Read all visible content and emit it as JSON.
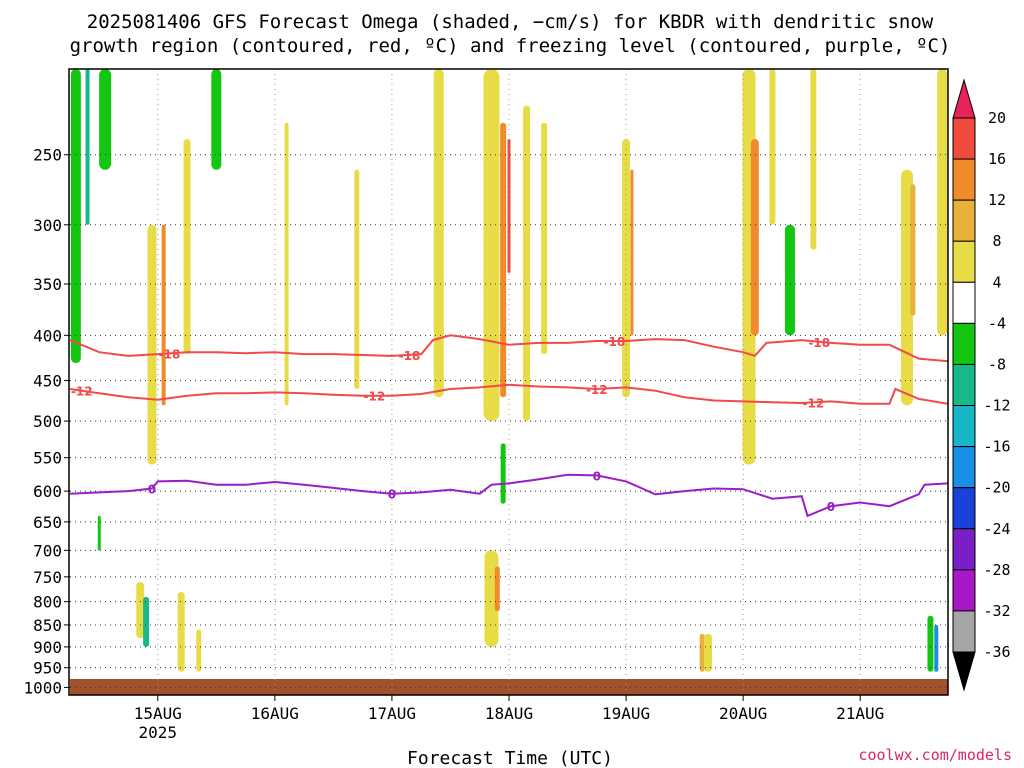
{
  "chart_data": {
    "type": "heatmap",
    "title_lines": [
      "2025081406 GFS Forecast Omega (shaded, −cm/s) for KBDR with dendritic snow",
      "growth region (contoured, red, ºC) and freezing level (contoured, purple, ºC)"
    ],
    "xlabel": "Forecast Time (UTC)",
    "credit": "coolwx.com/models",
    "x_ticks": [
      {
        "label": "15AUG",
        "sub": "2025",
        "day": 15.0
      },
      {
        "label": "16AUG",
        "sub": "",
        "day": 16.0
      },
      {
        "label": "17AUG",
        "sub": "",
        "day": 17.0
      },
      {
        "label": "18AUG",
        "sub": "",
        "day": 18.0
      },
      {
        "label": "19AUG",
        "sub": "",
        "day": 19.0
      },
      {
        "label": "20AUG",
        "sub": "",
        "day": 20.0
      },
      {
        "label": "21AUG",
        "sub": "",
        "day": 21.0
      }
    ],
    "x_range": [
      14.25,
      21.75
    ],
    "y_ticks": [
      250,
      300,
      350,
      400,
      450,
      500,
      550,
      600,
      650,
      700,
      750,
      800,
      850,
      900,
      950,
      1000
    ],
    "y_range_hpa": [
      200,
      1020
    ],
    "y_scale": "log-pressure",
    "colorbar": {
      "labels": [
        "20",
        "16",
        "12",
        "8",
        "4",
        "-4",
        "-8",
        "-12",
        "-16",
        "-20",
        "-24",
        "-28",
        "-32",
        "-36"
      ],
      "colors": [
        "#e6245a",
        "#f04a3c",
        "#f08a2a",
        "#e8b23a",
        "#e8dc46",
        "#ffffff",
        "#12c612",
        "#17b889",
        "#15b6c8",
        "#1a8fe8",
        "#1b42d8",
        "#7a1ec8",
        "#a818c8",
        "#a6a6a6",
        "#000000"
      ]
    },
    "contours": [
      {
        "name": "-18",
        "color": "#f04a4a",
        "points": [
          [
            14.25,
            405
          ],
          [
            14.5,
            418
          ],
          [
            14.75,
            422
          ],
          [
            15.0,
            420
          ],
          [
            15.25,
            418
          ],
          [
            15.5,
            418
          ],
          [
            15.75,
            419
          ],
          [
            16.0,
            418
          ],
          [
            16.25,
            420
          ],
          [
            16.5,
            420
          ],
          [
            16.75,
            421
          ],
          [
            17.0,
            422
          ],
          [
            17.25,
            420
          ],
          [
            17.35,
            405
          ],
          [
            17.5,
            400
          ],
          [
            17.75,
            404
          ],
          [
            18.0,
            410
          ],
          [
            18.25,
            408
          ],
          [
            18.5,
            408
          ],
          [
            18.75,
            406
          ],
          [
            19.0,
            406
          ],
          [
            19.25,
            404
          ],
          [
            19.5,
            405
          ],
          [
            19.75,
            412
          ],
          [
            20.0,
            418
          ],
          [
            20.1,
            422
          ],
          [
            20.2,
            408
          ],
          [
            20.5,
            405
          ],
          [
            20.75,
            408
          ],
          [
            21.0,
            410
          ],
          [
            21.25,
            410
          ],
          [
            21.5,
            425
          ],
          [
            21.75,
            428
          ]
        ],
        "labels": [
          [
            15.1,
            "-18"
          ],
          [
            17.15,
            "-18"
          ],
          [
            18.9,
            "-18"
          ],
          [
            20.65,
            "-18"
          ]
        ]
      },
      {
        "name": "-12",
        "color": "#f04a4a",
        "points": [
          [
            14.25,
            460
          ],
          [
            14.5,
            465
          ],
          [
            14.75,
            470
          ],
          [
            15.0,
            473
          ],
          [
            15.25,
            468
          ],
          [
            15.5,
            465
          ],
          [
            15.75,
            465
          ],
          [
            16.0,
            464
          ],
          [
            16.25,
            465
          ],
          [
            16.5,
            467
          ],
          [
            16.75,
            468
          ],
          [
            17.0,
            468
          ],
          [
            17.25,
            466
          ],
          [
            17.5,
            460
          ],
          [
            17.75,
            458
          ],
          [
            18.0,
            455
          ],
          [
            18.25,
            457
          ],
          [
            18.5,
            458
          ],
          [
            18.75,
            460
          ],
          [
            19.0,
            458
          ],
          [
            19.25,
            462
          ],
          [
            19.5,
            470
          ],
          [
            19.75,
            474
          ],
          [
            20.0,
            475
          ],
          [
            20.25,
            476
          ],
          [
            20.5,
            477
          ],
          [
            20.75,
            475
          ],
          [
            21.0,
            478
          ],
          [
            21.25,
            478
          ],
          [
            21.3,
            460
          ],
          [
            21.5,
            472
          ],
          [
            21.75,
            478
          ]
        ],
        "labels": [
          [
            14.35,
            "-12"
          ],
          [
            16.85,
            "-12"
          ],
          [
            18.75,
            "-12"
          ],
          [
            20.6,
            "-12"
          ]
        ]
      },
      {
        "name": "0",
        "color": "#9a1ec8",
        "points": [
          [
            14.25,
            604
          ],
          [
            14.5,
            602
          ],
          [
            14.75,
            600
          ],
          [
            14.95,
            596
          ],
          [
            15.0,
            585
          ],
          [
            15.25,
            584
          ],
          [
            15.5,
            590
          ],
          [
            15.75,
            590
          ],
          [
            16.0,
            586
          ],
          [
            16.25,
            590
          ],
          [
            16.5,
            595
          ],
          [
            16.75,
            600
          ],
          [
            17.0,
            604
          ],
          [
            17.25,
            602
          ],
          [
            17.5,
            598
          ],
          [
            17.75,
            604
          ],
          [
            17.85,
            590
          ],
          [
            18.0,
            588
          ],
          [
            18.25,
            582
          ],
          [
            18.5,
            575
          ],
          [
            18.75,
            576
          ],
          [
            19.0,
            585
          ],
          [
            19.25,
            605
          ],
          [
            19.5,
            600
          ],
          [
            19.75,
            596
          ],
          [
            20.0,
            597
          ],
          [
            20.25,
            612
          ],
          [
            20.5,
            608
          ],
          [
            20.55,
            640
          ],
          [
            20.75,
            624
          ],
          [
            21.0,
            618
          ],
          [
            21.25,
            624
          ],
          [
            21.5,
            605
          ],
          [
            21.55,
            590
          ],
          [
            21.75,
            588
          ]
        ],
        "labels": [
          [
            14.95,
            "0"
          ],
          [
            17.0,
            "0"
          ],
          [
            18.75,
            "0"
          ],
          [
            20.75,
            "0"
          ]
        ]
      }
    ]
  }
}
